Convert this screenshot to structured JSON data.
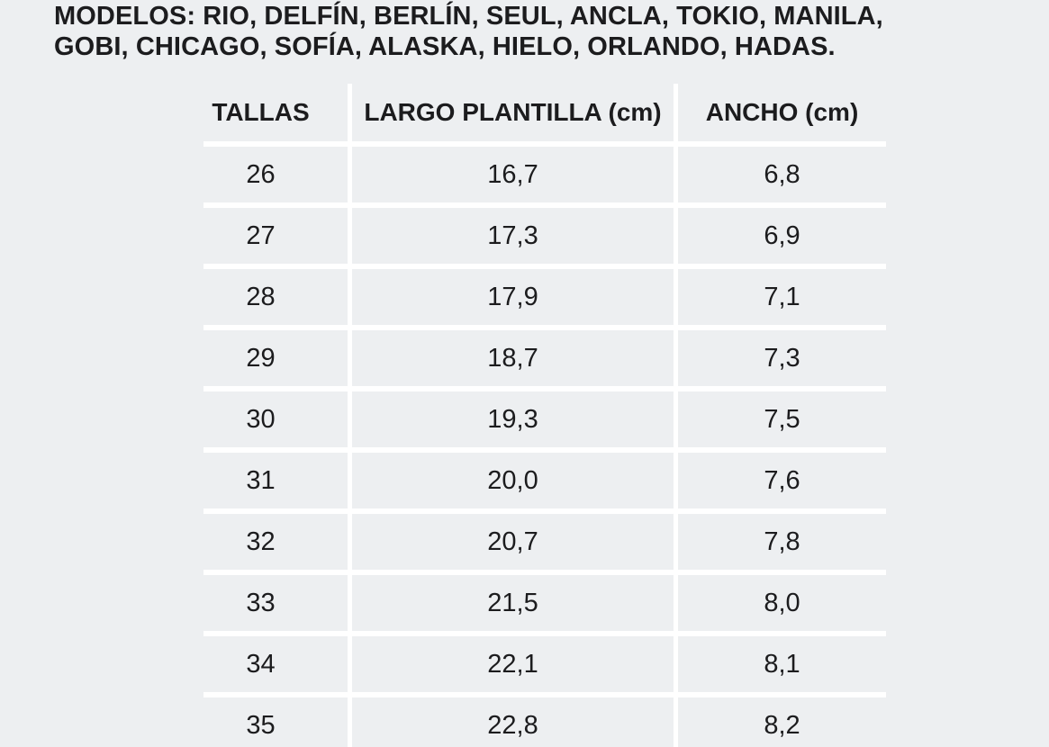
{
  "title": {
    "line1": "MODELOS: RIO, DELFÍN, BERLÍN, SEUL, ANCLA, TOKIO, MANILA,",
    "line2": "GOBI, CHICAGO, SOFÍA, ALASKA, HIELO, ORLANDO, HADAS."
  },
  "table": {
    "headers": [
      "TALLAS",
      "LARGO PLANTILLA (cm)",
      "ANCHO (cm)"
    ],
    "rows": [
      [
        "26",
        "16,7",
        "6,8"
      ],
      [
        "27",
        "17,3",
        "6,9"
      ],
      [
        "28",
        "17,9",
        "7,1"
      ],
      [
        "29",
        "18,7",
        "7,3"
      ],
      [
        "30",
        "19,3",
        "7,5"
      ],
      [
        "31",
        "20,0",
        "7,6"
      ],
      [
        "32",
        "20,7",
        "7,8"
      ],
      [
        "33",
        "21,5",
        "8,0"
      ],
      [
        "34",
        "22,1",
        "8,1"
      ],
      [
        "35",
        "22,8",
        "8,2"
      ]
    ]
  },
  "colors": {
    "background": "#edeff1",
    "grid_lines": "#ffffff",
    "text": "#1c1c1e"
  }
}
